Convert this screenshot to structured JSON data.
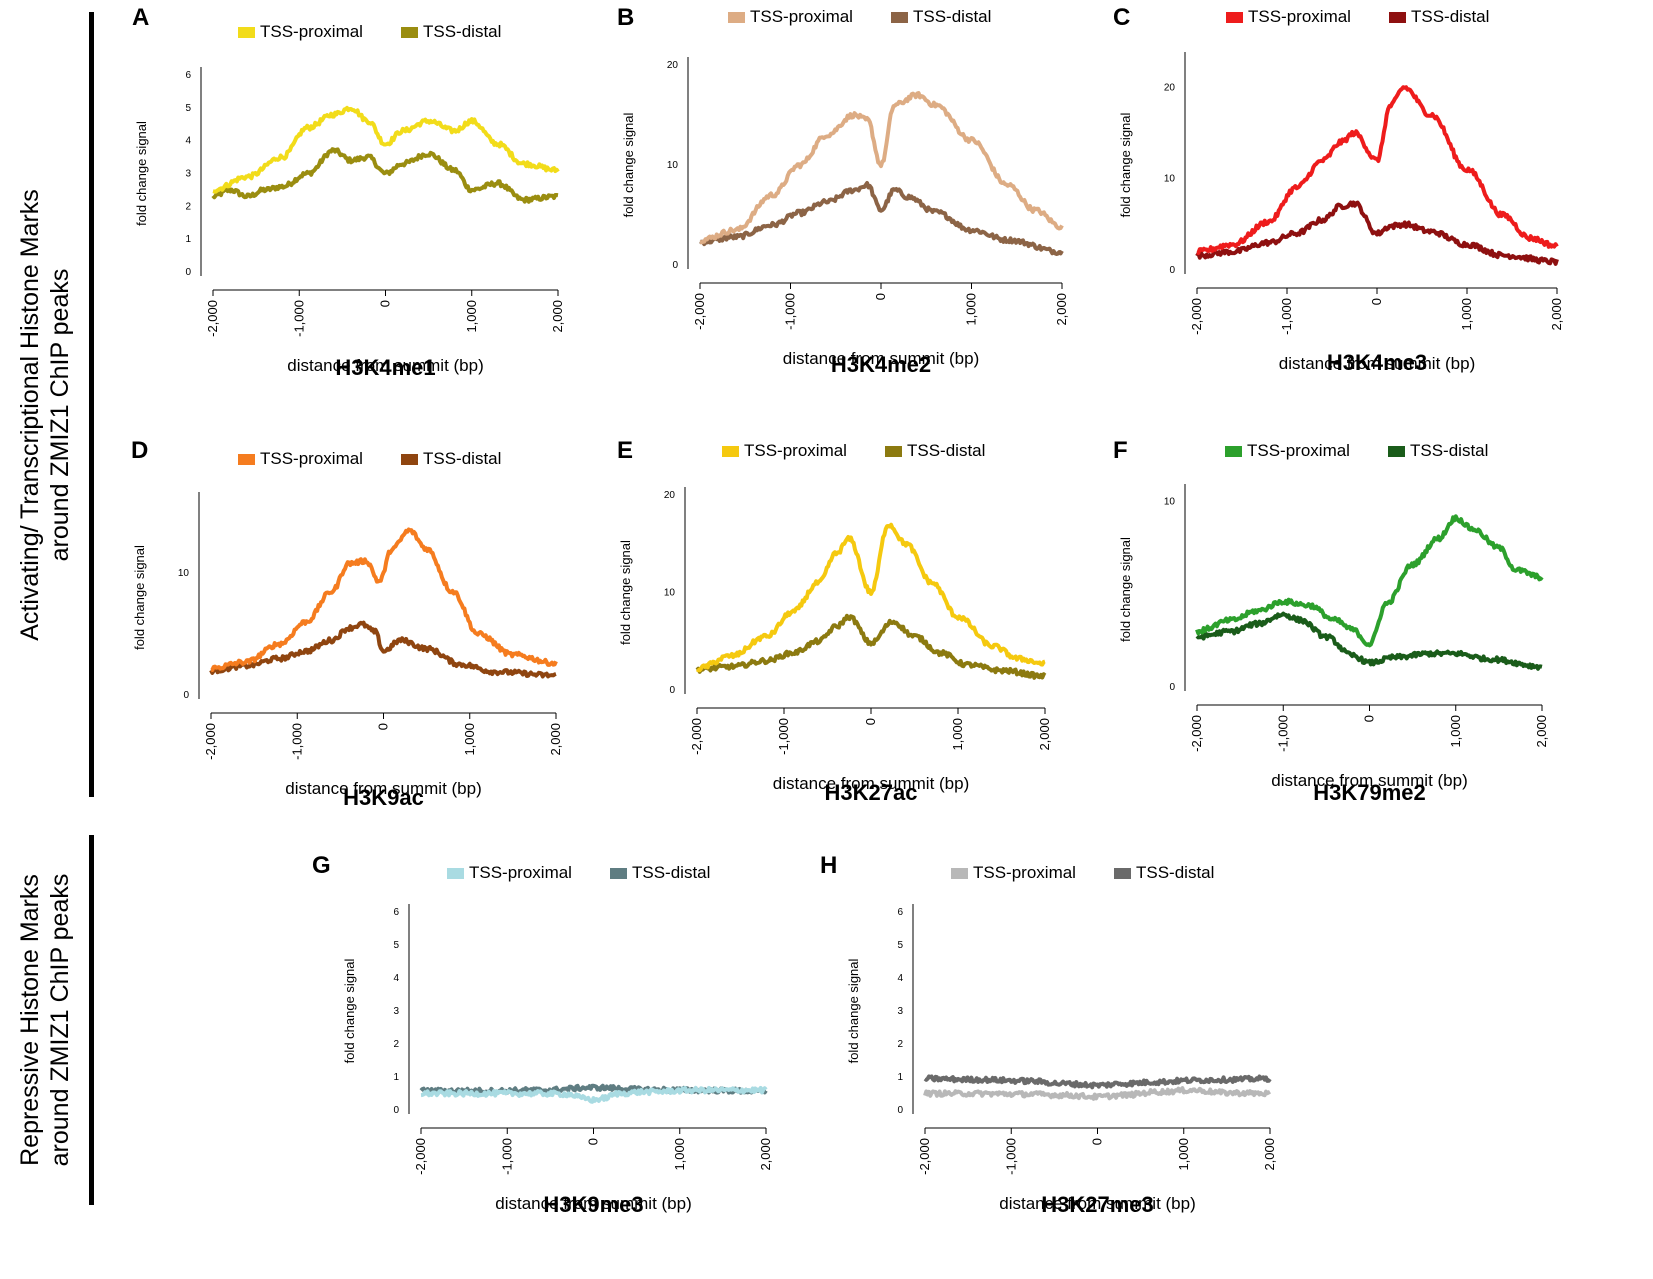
{
  "sections": {
    "activating": {
      "line1": "Activating/ Transcriptional Histone Marks",
      "line2": "around ZMIZ1 ChIP peaks"
    },
    "repressive": {
      "line1": "Repressive Histone Marks",
      "line2": "around ZMIZ1 ChIP peaks"
    }
  },
  "chart_data": [
    {
      "panel": "A",
      "type": "line",
      "title": "H3K4me1",
      "xlabel": "distance from summit (bp)",
      "ylabel": "fold change signal",
      "xlim": [
        -2000,
        2000
      ],
      "ylim": [
        0,
        6
      ],
      "yticks": [
        0,
        1,
        2,
        3,
        4,
        5,
        6
      ],
      "xticks": [
        "-2,000",
        "-1,000",
        "0",
        "1,000",
        "2,000"
      ],
      "legend": [
        "TSS-proximal",
        "TSS-distal"
      ],
      "colors": [
        "#f2dc1a",
        "#9a8d10"
      ],
      "series": [
        {
          "name": "TSS-proximal",
          "x": [
            -2000,
            -1600,
            -1200,
            -900,
            -600,
            -400,
            -200,
            0,
            200,
            500,
            800,
            1000,
            1300,
            1600,
            2000
          ],
          "y": [
            2.5,
            2.9,
            3.5,
            4.4,
            4.8,
            5.0,
            4.6,
            3.9,
            4.3,
            4.6,
            4.3,
            4.6,
            3.9,
            3.3,
            3.1
          ]
        },
        {
          "name": "TSS-distal",
          "x": [
            -2000,
            -1800,
            -1600,
            -1400,
            -1200,
            -900,
            -600,
            -400,
            -200,
            0,
            200,
            500,
            800,
            1000,
            1300,
            1600,
            2000
          ],
          "y": [
            2.3,
            2.5,
            2.3,
            2.5,
            2.6,
            3.0,
            3.7,
            3.4,
            3.5,
            3.0,
            3.3,
            3.6,
            3.1,
            2.5,
            2.7,
            2.2,
            2.3
          ]
        }
      ]
    },
    {
      "panel": "B",
      "type": "line",
      "title": "H3K4me2",
      "xlabel": "distance from summit (bp)",
      "ylabel": "fold change signal",
      "xlim": [
        -2000,
        2000
      ],
      "ylim": [
        0,
        20
      ],
      "yticks": [
        0,
        10,
        20
      ],
      "xticks": [
        "-2,000",
        "-1,000",
        "0",
        "1,000",
        "2,000"
      ],
      "legend": [
        "TSS-proximal",
        "TSS-distal"
      ],
      "colors": [
        "#ddac84",
        "#8c6446"
      ],
      "series": [
        {
          "name": "TSS-proximal",
          "x": [
            -2000,
            -1600,
            -1200,
            -900,
            -600,
            -300,
            -150,
            0,
            150,
            400,
            600,
            1000,
            1400,
            1700,
            2000
          ],
          "y": [
            2.5,
            3.5,
            7,
            10,
            13,
            15,
            14.5,
            10,
            16,
            17,
            16,
            12.5,
            8,
            5.5,
            3.8
          ]
        },
        {
          "name": "TSS-distal",
          "x": [
            -2000,
            -1600,
            -1200,
            -900,
            -600,
            -300,
            -150,
            0,
            150,
            300,
            600,
            1000,
            1400,
            2000
          ],
          "y": [
            2.3,
            2.8,
            4,
            5.2,
            6.3,
            7.5,
            8,
            5.5,
            7.5,
            6.8,
            5.3,
            3.5,
            2.5,
            1.3
          ]
        }
      ]
    },
    {
      "panel": "C",
      "type": "line",
      "title": "H3K4me3",
      "xlabel": "distance from summit (bp)",
      "ylabel": "fold change signal",
      "xlim": [
        -2000,
        2000
      ],
      "ylim": [
        0,
        23
      ],
      "yticks": [
        0,
        10,
        20
      ],
      "xticks": [
        "-2,000",
        "-1,000",
        "0",
        "1,000",
        "2,000"
      ],
      "legend": [
        "TSS-proximal",
        "TSS-distal"
      ],
      "colors": [
        "#ee1c1c",
        "#8e1010"
      ],
      "series": [
        {
          "name": "TSS-proximal",
          "x": [
            -2000,
            -1600,
            -1200,
            -900,
            -600,
            -400,
            -250,
            0,
            150,
            300,
            600,
            1000,
            1400,
            1700,
            2000
          ],
          "y": [
            2,
            2.8,
            5.3,
            9,
            12,
            14,
            15,
            12,
            18,
            20,
            17,
            11,
            6,
            3.5,
            2.6
          ]
        },
        {
          "name": "TSS-distal",
          "x": [
            -2000,
            -1600,
            -1200,
            -900,
            -600,
            -400,
            -250,
            0,
            150,
            300,
            600,
            1000,
            1400,
            2000
          ],
          "y": [
            1.6,
            2,
            3,
            4,
            5.5,
            7,
            7.3,
            4,
            4.8,
            5,
            4.2,
            2.8,
            1.6,
            0.9
          ]
        }
      ]
    },
    {
      "panel": "D",
      "type": "line",
      "title": "H3K9ac",
      "xlabel": "distance from summit (bp)",
      "ylabel": "fold change signal",
      "xlim": [
        -2000,
        2000
      ],
      "ylim": [
        0,
        16
      ],
      "yticks": [
        0,
        10
      ],
      "xticks": [
        "-2,000",
        "-1,000",
        "0",
        "1,000",
        "2,000"
      ],
      "legend": [
        "TSS-proximal",
        "TSS-distal"
      ],
      "colors": [
        "#f57c1f",
        "#8f4510"
      ],
      "series": [
        {
          "name": "TSS-proximal",
          "x": [
            -2000,
            -1600,
            -1200,
            -900,
            -600,
            -400,
            -200,
            -50,
            100,
            300,
            500,
            800,
            1100,
            1500,
            2000
          ],
          "y": [
            2.2,
            2.7,
            4.2,
            6,
            8.5,
            10.8,
            11,
            9.3,
            12,
            13.5,
            12,
            8.5,
            5,
            3.3,
            2.6
          ]
        },
        {
          "name": "TSS-distal",
          "x": [
            -2000,
            -1600,
            -1200,
            -900,
            -600,
            -400,
            -250,
            -100,
            0,
            200,
            500,
            900,
            1300,
            2000
          ],
          "y": [
            2,
            2.4,
            3,
            3.6,
            4.5,
            5.5,
            5.8,
            5.2,
            3.6,
            4.5,
            3.8,
            2.5,
            1.9,
            1.6
          ]
        }
      ]
    },
    {
      "panel": "E",
      "type": "line",
      "title": "H3K27ac",
      "xlabel": "distance from summit (bp)",
      "ylabel": "fold change signal",
      "xlim": [
        -2000,
        2000
      ],
      "ylim": [
        0,
        20
      ],
      "yticks": [
        0,
        10,
        20
      ],
      "xticks": [
        "-2,000",
        "-1,000",
        "0",
        "1,000",
        "2,000"
      ],
      "legend": [
        "TSS-proximal",
        "TSS-distal"
      ],
      "colors": [
        "#f5c90f",
        "#8c7a10"
      ],
      "series": [
        {
          "name": "TSS-proximal",
          "x": [
            -2000,
            -1600,
            -1200,
            -900,
            -600,
            -400,
            -250,
            0,
            200,
            400,
            700,
            1000,
            1400,
            1700,
            2000
          ],
          "y": [
            2.2,
            3.5,
            5.5,
            8,
            11,
            14,
            15.5,
            10,
            17,
            15,
            11,
            7.5,
            4.5,
            3.2,
            2.7
          ]
        },
        {
          "name": "TSS-distal",
          "x": [
            -2000,
            -1600,
            -1200,
            -900,
            -600,
            -400,
            -250,
            0,
            250,
            500,
            800,
            1100,
            1500,
            2000
          ],
          "y": [
            2.1,
            2.4,
            3,
            3.8,
            5,
            6.5,
            7.5,
            4.8,
            7,
            5.5,
            3.8,
            2.6,
            2,
            1.4
          ]
        }
      ]
    },
    {
      "panel": "F",
      "type": "line",
      "title": "H3K79me2",
      "xlabel": "distance from summit (bp)",
      "ylabel": "fold change signal",
      "xlim": [
        -2000,
        2000
      ],
      "ylim": [
        0,
        10.5
      ],
      "yticks": [
        0,
        10
      ],
      "xticks": [
        "-2,000",
        "-1,000",
        "0",
        "1,000",
        "2,000"
      ],
      "legend": [
        "TSS-proximal",
        "TSS-distal"
      ],
      "colors": [
        "#2ca02c",
        "#1a5c1a"
      ],
      "series": [
        {
          "name": "TSS-proximal",
          "x": [
            -2000,
            -1600,
            -1300,
            -1000,
            -700,
            -400,
            -200,
            0,
            200,
            500,
            800,
            1000,
            1200,
            1500,
            1700,
            2000
          ],
          "y": [
            3,
            3.6,
            4.1,
            4.6,
            4.4,
            3.6,
            3.1,
            2.3,
            4.5,
            6.6,
            8,
            9.1,
            8.5,
            7.5,
            6.3,
            5.9
          ]
        },
        {
          "name": "TSS-distal",
          "x": [
            -2000,
            -1600,
            -1300,
            -1000,
            -800,
            -500,
            -200,
            0,
            300,
            700,
            1000,
            1400,
            2000
          ],
          "y": [
            2.7,
            3,
            3.4,
            3.9,
            3.6,
            2.7,
            1.7,
            1.3,
            1.6,
            1.8,
            1.8,
            1.5,
            1.1
          ]
        }
      ]
    },
    {
      "panel": "G",
      "type": "line",
      "title": "H3K9me3",
      "xlabel": "distance from summit (bp)",
      "ylabel": "fold change signal",
      "xlim": [
        -2000,
        2000
      ],
      "ylim": [
        0,
        6
      ],
      "yticks": [
        0,
        1,
        2,
        3,
        4,
        5,
        6
      ],
      "xticks": [
        "-2,000",
        "-1,000",
        "0",
        "1,000",
        "2,000"
      ],
      "legend": [
        "TSS-proximal",
        "TSS-distal"
      ],
      "colors": [
        "#a9dbe2",
        "#5f7d82"
      ],
      "series": [
        {
          "name": "TSS-proximal",
          "x": [
            -2000,
            -1200,
            -600,
            -300,
            -100,
            0,
            100,
            300,
            600,
            1200,
            2000
          ],
          "y": [
            0.5,
            0.5,
            0.5,
            0.48,
            0.35,
            0.3,
            0.35,
            0.5,
            0.55,
            0.6,
            0.6
          ]
        },
        {
          "name": "TSS-distal",
          "x": [
            -2000,
            -1200,
            -600,
            0,
            600,
            1200,
            2000
          ],
          "y": [
            0.58,
            0.58,
            0.6,
            0.68,
            0.62,
            0.6,
            0.57
          ]
        }
      ]
    },
    {
      "panel": "H",
      "type": "line",
      "title": "H3K27me3",
      "xlabel": "distance from summit (bp)",
      "ylabel": "fold change signal",
      "xlim": [
        -2000,
        2000
      ],
      "ylim": [
        0,
        6
      ],
      "yticks": [
        0,
        1,
        2,
        3,
        4,
        5,
        6
      ],
      "xticks": [
        "-2,000",
        "-1,000",
        "0",
        "1,000",
        "2,000"
      ],
      "legend": [
        "TSS-proximal",
        "TSS-distal"
      ],
      "colors": [
        "#b8b8b8",
        "#6a6a6a"
      ],
      "series": [
        {
          "name": "TSS-proximal",
          "x": [
            -2000,
            -1400,
            -800,
            -400,
            0,
            300,
            700,
            1100,
            1500,
            2000
          ],
          "y": [
            0.5,
            0.5,
            0.48,
            0.45,
            0.4,
            0.45,
            0.55,
            0.6,
            0.52,
            0.5
          ]
        },
        {
          "name": "TSS-distal",
          "x": [
            -2000,
            -1400,
            -800,
            -400,
            0,
            300,
            700,
            1100,
            1500,
            2000
          ],
          "y": [
            0.95,
            0.92,
            0.88,
            0.8,
            0.75,
            0.8,
            0.85,
            0.9,
            0.92,
            0.95
          ]
        }
      ]
    }
  ]
}
